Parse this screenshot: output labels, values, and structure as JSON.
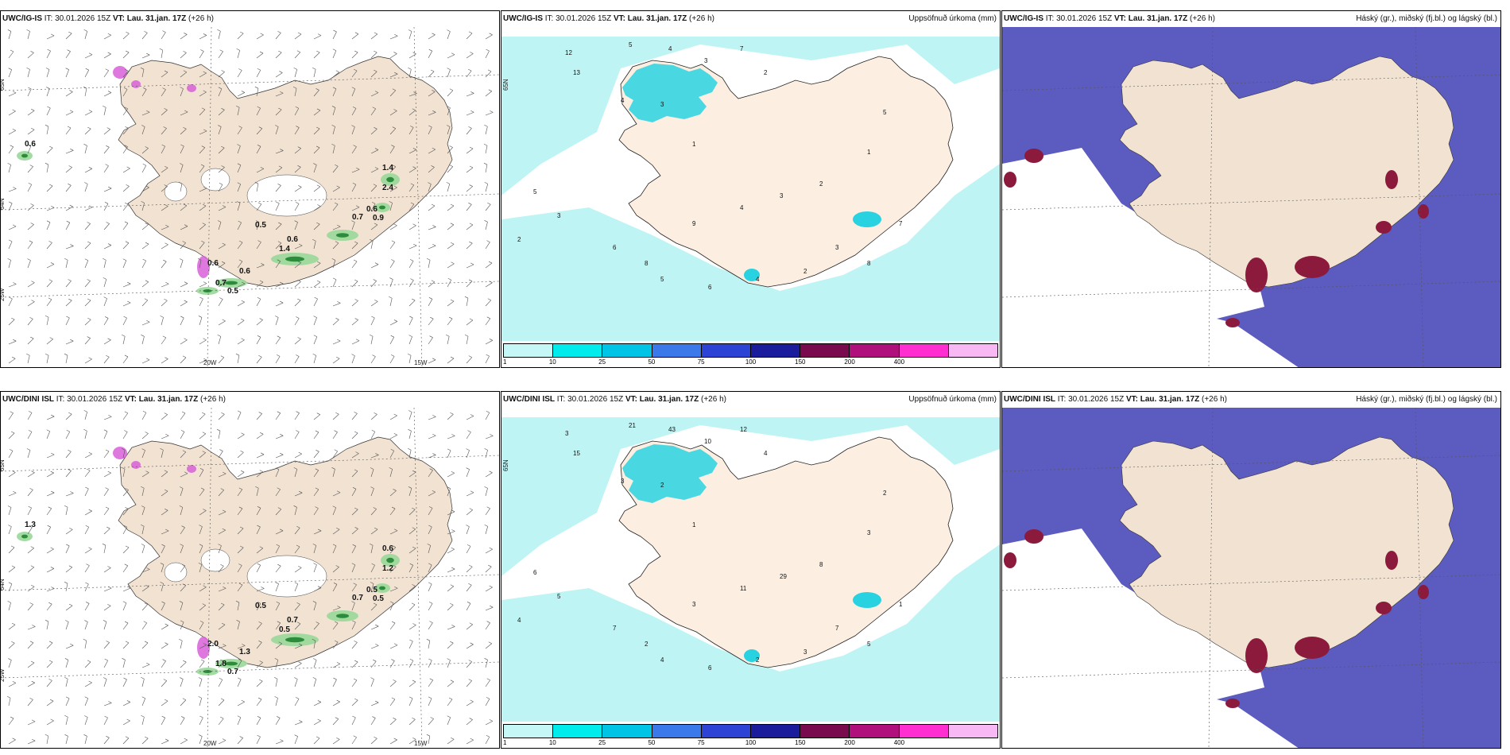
{
  "colors": {
    "land": "#f2e2d2",
    "land_alt": "#fcefe2",
    "precip_light": "#bff4f4",
    "precip_mid": "#29d2e0",
    "cloud_high": "#5c5bbf",
    "cloud_mid": "#3e6ae0",
    "cloud_low": "#8c1a3c",
    "green": "#98d898",
    "green_dark": "#2c8c3c",
    "magenta": "#d860d8"
  },
  "panels": [
    {
      "model": "UWC/IG-IS",
      "it_label": "IT:",
      "it": "30.01.2026 15Z",
      "vt_label": "VT:",
      "vt": "Lau. 31.jan. 17Z",
      "lead": "(+26 h)",
      "right_title": "",
      "map": {
        "type": "wind",
        "lat_labels": [
          "65N",
          "64N",
          "25W"
        ],
        "lon_labels": [
          "20W",
          "15W"
        ],
        "values": [
          "0.6",
          "1.4",
          "2.4",
          "0.6",
          "0.9",
          "0.7",
          "0.5",
          "0.6",
          "1.4",
          "0.6",
          "0.6",
          "0.7",
          "0.5"
        ]
      }
    },
    {
      "model": "UWC/IG-IS",
      "it_label": "IT:",
      "it": "30.01.2026 15Z",
      "vt_label": "VT:",
      "vt": "Lau. 31.jan. 17Z",
      "lead": "(+26 h)",
      "right_title": "Uppsöfnuð úrkoma (mm)",
      "map": {
        "type": "precip",
        "lat_labels": [
          "65N"
        ],
        "lon_labels": [],
        "values": [
          "12",
          "13",
          "5",
          "4",
          "3",
          "7",
          "2",
          "4",
          "3",
          "1",
          "5",
          "3",
          "2",
          "6",
          "8",
          "9",
          "4",
          "3",
          "2",
          "1",
          "5",
          "7",
          "8",
          "3",
          "2",
          "4",
          "6",
          "5"
        ]
      }
    },
    {
      "model": "UWC/IG-IS",
      "it_label": "IT:",
      "it": "30.01.2026 15Z",
      "vt_label": "VT:",
      "vt": "Lau. 31.jan. 17Z",
      "lead": "(+26 h)",
      "right_title": "Háský (gr.), miðský (fj.bl.) og lágský (bl.)",
      "map": {
        "type": "cloud",
        "lat_labels": [],
        "lon_labels": [],
        "values": []
      }
    },
    {
      "model": "UWC/DINI ISL",
      "it_label": "IT:",
      "it": "30.01.2026 15Z",
      "vt_label": "VT:",
      "vt": "Lau. 31.jan. 17Z",
      "lead": "(+26 h)",
      "right_title": "",
      "map": {
        "type": "wind",
        "lat_labels": [
          "65N",
          "64N",
          "25W"
        ],
        "lon_labels": [
          "20W",
          "15W"
        ],
        "values": [
          "1.3",
          "0.6",
          "1.2",
          "0.5",
          "0.5",
          "0.7",
          "0.5",
          "0.7",
          "0.5",
          "2.0",
          "1.3",
          "1.8",
          "0.7"
        ]
      }
    },
    {
      "model": "UWC/DINI ISL",
      "it_label": "IT:",
      "it": "30.01.2026 15Z",
      "vt_label": "VT:",
      "vt": "Lau. 31.jan. 17Z",
      "lead": "(+26 h)",
      "right_title": "Uppsöfnuð úrkoma (mm)",
      "map": {
        "type": "precip",
        "lat_labels": [
          "65N"
        ],
        "lon_labels": [],
        "values": [
          "3",
          "15",
          "21",
          "43",
          "10",
          "12",
          "4",
          "3",
          "2",
          "1",
          "6",
          "5",
          "4",
          "7",
          "2",
          "3",
          "11",
          "29",
          "8",
          "3",
          "2",
          "1",
          "5",
          "7",
          "3",
          "2",
          "6",
          "4"
        ]
      }
    },
    {
      "model": "UWC/DINI ISL",
      "it_label": "IT:",
      "it": "30.01.2026 15Z",
      "vt_label": "VT:",
      "vt": "Lau. 31.jan. 17Z",
      "lead": "(+26 h)",
      "right_title": "Háský (gr.), miðský (fj.bl.) og lágský (bl.)",
      "map": {
        "type": "cloud",
        "lat_labels": [],
        "lon_labels": [],
        "values": []
      }
    }
  ],
  "colorbar": {
    "ticks": [
      "1",
      "10",
      "25",
      "50",
      "75",
      "100",
      "150",
      "200",
      "400"
    ],
    "colors": [
      "#c6f7f7",
      "#00ecec",
      "#00c4e6",
      "#3b78ea",
      "#2d43d6",
      "#1a1c9c",
      "#7a0a4e",
      "#b0107c",
      "#ff2ed0",
      "#f8b8f4"
    ]
  }
}
